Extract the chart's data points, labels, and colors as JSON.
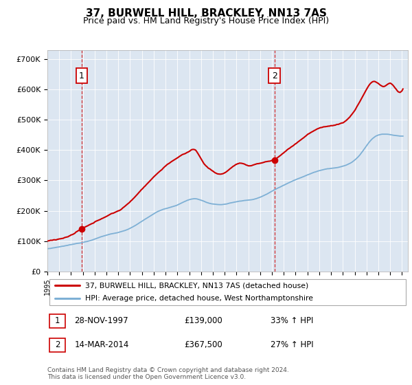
{
  "title": "37, BURWELL HILL, BRACKLEY, NN13 7AS",
  "subtitle": "Price paid vs. HM Land Registry's House Price Index (HPI)",
  "ylabel_ticks": [
    "£0",
    "£100K",
    "£200K",
    "£300K",
    "£400K",
    "£500K",
    "£600K",
    "£700K"
  ],
  "ytick_values": [
    0,
    100000,
    200000,
    300000,
    400000,
    500000,
    600000,
    700000
  ],
  "ylim": [
    0,
    730000
  ],
  "xlim_start": 1995.0,
  "xlim_end": 2025.5,
  "bg_color": "#dce6f1",
  "hpi_color": "#7eb0d5",
  "price_color": "#cc0000",
  "purchase1_date": 1997.91,
  "purchase1_price": 139000,
  "purchase2_date": 2014.21,
  "purchase2_price": 367500,
  "legend_label1": "37, BURWELL HILL, BRACKLEY, NN13 7AS (detached house)",
  "legend_label2": "HPI: Average price, detached house, West Northamptonshire",
  "annotation1_label": "1",
  "annotation1_text": "28-NOV-1997",
  "annotation1_price": "£139,000",
  "annotation1_hpi": "33% ↑ HPI",
  "annotation2_label": "2",
  "annotation2_text": "14-MAR-2014",
  "annotation2_price": "£367,500",
  "annotation2_hpi": "27% ↑ HPI",
  "footer": "Contains HM Land Registry data © Crown copyright and database right 2024.\nThis data is licensed under the Open Government Licence v3.0.",
  "title_fontsize": 11,
  "subtitle_fontsize": 9,
  "tick_fontsize": 8,
  "xtick_fontsize": 7
}
